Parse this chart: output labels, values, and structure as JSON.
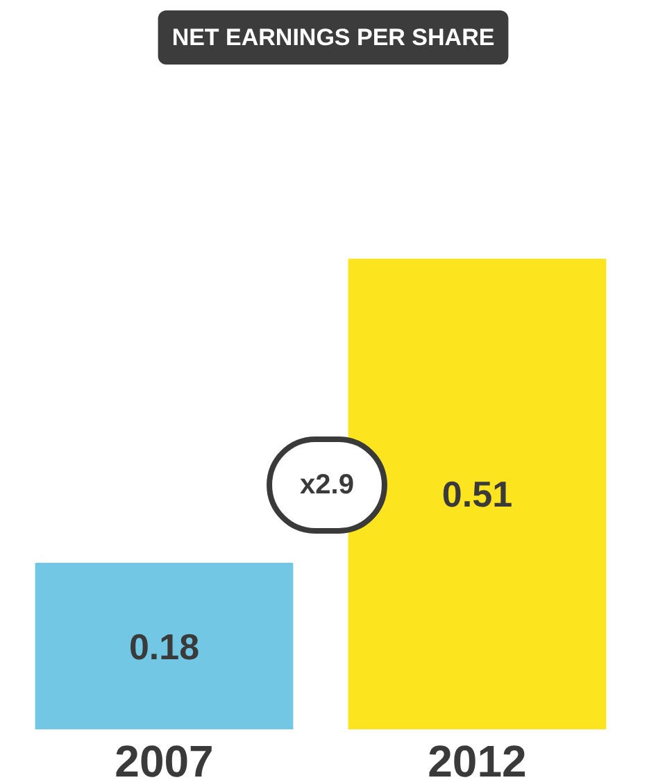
{
  "chart_data": {
    "type": "bar",
    "title": "NET EARNINGS PER SHARE",
    "categories": [
      "2007",
      "2012"
    ],
    "values": [
      0.18,
      0.51
    ],
    "colors": [
      "#72c8e4",
      "#fce51e"
    ],
    "data_labels": true,
    "annotations": [
      "x2.9"
    ]
  }
}
